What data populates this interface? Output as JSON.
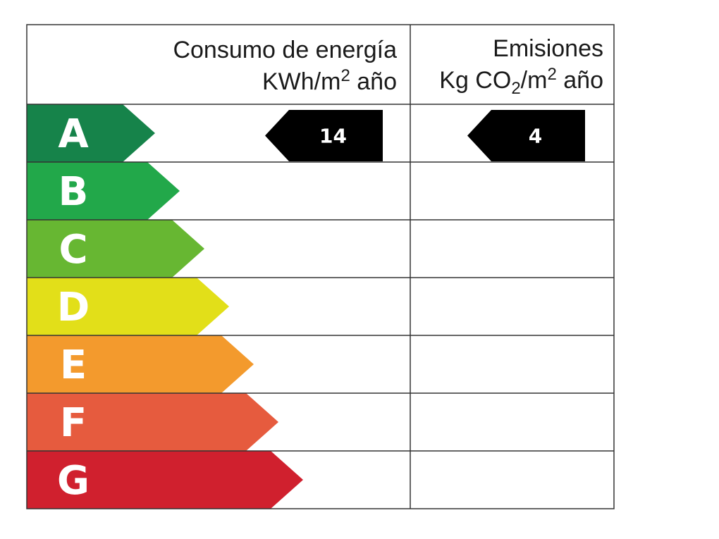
{
  "header": {
    "consumo_title": "Consumo de energía",
    "consumo_unit_main": "KWh/m",
    "consumo_unit_sup": "2",
    "consumo_unit_tail": " año",
    "emisiones_title": "Emisiones",
    "emisiones_unit_a": "Kg CO",
    "emisiones_unit_sub": "2",
    "emisiones_unit_b": "/m",
    "emisiones_unit_sup": "2",
    "emisiones_unit_tail": " año"
  },
  "classes": [
    {
      "letter": "A",
      "color": "#16834a"
    },
    {
      "letter": "B",
      "color": "#22a84a"
    },
    {
      "letter": "C",
      "color": "#67b732"
    },
    {
      "letter": "D",
      "color": "#e2df19"
    },
    {
      "letter": "E",
      "color": "#f39a2d"
    },
    {
      "letter": "F",
      "color": "#e65b3e"
    },
    {
      "letter": "G",
      "color": "#d0202e"
    }
  ],
  "ratings": {
    "consumo": {
      "class": "A",
      "value": "14"
    },
    "emisiones": {
      "class": "A",
      "value": "4"
    }
  },
  "indicator_color": "#000000"
}
